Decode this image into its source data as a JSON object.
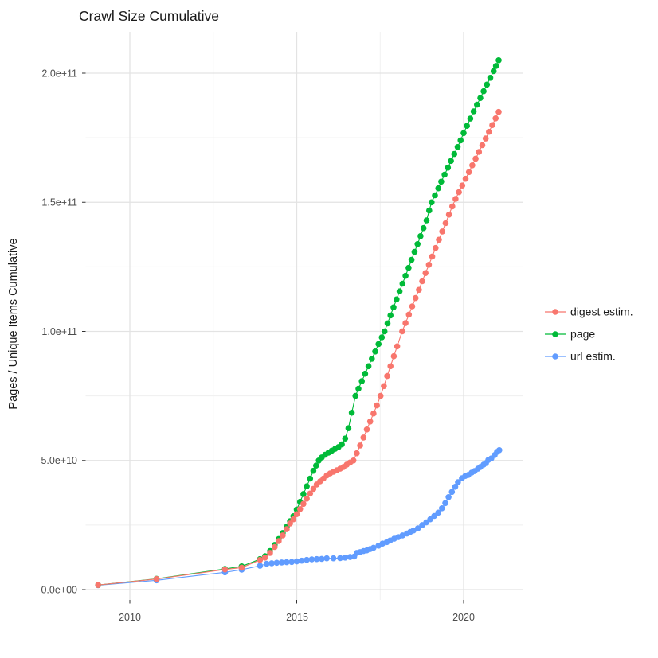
{
  "chart_data": {
    "type": "scatter",
    "title": "Crawl Size Cumulative",
    "xlabel": "",
    "ylabel": "Pages / Unique Items Cumulative",
    "grid": "major+minor",
    "legend_position": "right",
    "x_axis": {
      "ticks": [
        2010,
        2015,
        2020
      ],
      "tick_labels": [
        "2010",
        "2015",
        "2020"
      ],
      "minor_ticks": [
        2012.5,
        2017.5
      ],
      "range": [
        2008.7,
        2021.8
      ]
    },
    "y_axis": {
      "ticks": [
        0,
        50000000000.0,
        100000000000.0,
        150000000000.0,
        200000000000.0
      ],
      "tick_labels": [
        "0.0e+00",
        "5.0e+10",
        "1.0e+11",
        "1.5e+11",
        "2.0e+11"
      ],
      "minor_ticks": [
        25000000000.0,
        75000000000.0,
        125000000000.0,
        175000000000.0
      ],
      "range": [
        -4000000000.0,
        216000000000.0
      ]
    },
    "series": [
      {
        "name": "digest estim.",
        "color": "#F8766D",
        "points": [
          [
            2009.05,
            1800000000.0
          ],
          [
            2010.8,
            4100000000.0
          ],
          [
            2012.85,
            7800000000.0
          ],
          [
            2013.35,
            8500000000.0
          ],
          [
            2013.9,
            11500000000.0
          ],
          [
            2014.05,
            12400000000.0
          ],
          [
            2014.2,
            14200000000.0
          ],
          [
            2014.34,
            16500000000.0
          ],
          [
            2014.46,
            18800000000.0
          ],
          [
            2014.58,
            21000000000.0
          ],
          [
            2014.7,
            23400000000.0
          ],
          [
            2014.8,
            25600000000.0
          ],
          [
            2014.9,
            27200000000.0
          ],
          [
            2015.0,
            29200000000.0
          ],
          [
            2015.1,
            31200000000.0
          ],
          [
            2015.2,
            33200000000.0
          ],
          [
            2015.3,
            35200000000.0
          ],
          [
            2015.4,
            37200000000.0
          ],
          [
            2015.5,
            39000000000.0
          ],
          [
            2015.6,
            40700000000.0
          ],
          [
            2015.7,
            41900000000.0
          ],
          [
            2015.8,
            43000000000.0
          ],
          [
            2015.9,
            44200000000.0
          ],
          [
            2016.0,
            45000000000.0
          ],
          [
            2016.1,
            45600000000.0
          ],
          [
            2016.2,
            46200000000.0
          ],
          [
            2016.3,
            46800000000.0
          ],
          [
            2016.4,
            47500000000.0
          ],
          [
            2016.5,
            48400000000.0
          ],
          [
            2016.6,
            49200000000.0
          ],
          [
            2016.7,
            50000000000.0
          ],
          [
            2016.8,
            52800000000.0
          ],
          [
            2016.9,
            55800000000.0
          ],
          [
            2017.0,
            58900000000.0
          ],
          [
            2017.1,
            62000000000.0
          ],
          [
            2017.2,
            65100000000.0
          ],
          [
            2017.3,
            68200000000.0
          ],
          [
            2017.4,
            71300000000.0
          ],
          [
            2017.51,
            75000000000.0
          ],
          [
            2017.61,
            78800000000.0
          ],
          [
            2017.71,
            82700000000.0
          ],
          [
            2017.81,
            86500000000.0
          ],
          [
            2017.91,
            90400000000.0
          ],
          [
            2018.01,
            94200000000.0
          ],
          [
            2018.16,
            100000000000.0
          ],
          [
            2018.26,
            103200000000.0
          ],
          [
            2018.36,
            106500000000.0
          ],
          [
            2018.46,
            109700000000.0
          ],
          [
            2018.56,
            112900000000.0
          ],
          [
            2018.66,
            116100000000.0
          ],
          [
            2018.76,
            119400000000.0
          ],
          [
            2018.86,
            122600000000.0
          ],
          [
            2018.96,
            125800000000.0
          ],
          [
            2019.06,
            129000000000.0
          ],
          [
            2019.16,
            132300000000.0
          ],
          [
            2019.26,
            135500000000.0
          ],
          [
            2019.36,
            138700000000.0
          ],
          [
            2019.46,
            141900000000.0
          ],
          [
            2019.56,
            145200000000.0
          ],
          [
            2019.66,
            148400000000.0
          ],
          [
            2019.76,
            151300000000.0
          ],
          [
            2019.86,
            153900000000.0
          ],
          [
            2019.96,
            156500000000.0
          ],
          [
            2020.06,
            159100000000.0
          ],
          [
            2020.16,
            161700000000.0
          ],
          [
            2020.26,
            164300000000.0
          ],
          [
            2020.36,
            166900000000.0
          ],
          [
            2020.46,
            169500000000.0
          ],
          [
            2020.56,
            172100000000.0
          ],
          [
            2020.66,
            174700000000.0
          ],
          [
            2020.76,
            177300000000.0
          ],
          [
            2020.86,
            179900000000.0
          ],
          [
            2020.96,
            182500000000.0
          ],
          [
            2021.05,
            185000000000.0
          ]
        ]
      },
      {
        "name": "page",
        "color": "#00BA38",
        "points": [
          [
            2009.05,
            1800000000.0
          ],
          [
            2010.8,
            4200000000.0
          ],
          [
            2012.85,
            8000000000.0
          ],
          [
            2013.35,
            9000000000.0
          ],
          [
            2013.9,
            11800000000.0
          ],
          [
            2014.05,
            12900000000.0
          ],
          [
            2014.2,
            14900000000.0
          ],
          [
            2014.34,
            17300000000.0
          ],
          [
            2014.46,
            19600000000.0
          ],
          [
            2014.58,
            21900000000.0
          ],
          [
            2014.7,
            24300000000.0
          ],
          [
            2014.8,
            26500000000.0
          ],
          [
            2014.9,
            28400000000.0
          ],
          [
            2015.0,
            31000000000.0
          ],
          [
            2015.1,
            34000000000.0
          ],
          [
            2015.2,
            37000000000.0
          ],
          [
            2015.3,
            40000000000.0
          ],
          [
            2015.4,
            43000000000.0
          ],
          [
            2015.5,
            46000000000.0
          ],
          [
            2015.58,
            48000000000.0
          ],
          [
            2015.66,
            50000000000.0
          ],
          [
            2015.75,
            51200000000.0
          ],
          [
            2015.85,
            52200000000.0
          ],
          [
            2015.95,
            53000000000.0
          ],
          [
            2016.05,
            53800000000.0
          ],
          [
            2016.15,
            54500000000.0
          ],
          [
            2016.25,
            55200000000.0
          ],
          [
            2016.35,
            56200000000.0
          ],
          [
            2016.45,
            58500000000.0
          ],
          [
            2016.55,
            62500000000.0
          ],
          [
            2016.65,
            68500000000.0
          ],
          [
            2016.76,
            75000000000.0
          ],
          [
            2016.85,
            77800000000.0
          ],
          [
            2016.95,
            80700000000.0
          ],
          [
            2017.05,
            83600000000.0
          ],
          [
            2017.15,
            86500000000.0
          ],
          [
            2017.25,
            89400000000.0
          ],
          [
            2017.35,
            92200000000.0
          ],
          [
            2017.45,
            95100000000.0
          ],
          [
            2017.55,
            97700000000.0
          ],
          [
            2017.63,
            100000000000.0
          ],
          [
            2017.72,
            103100000000.0
          ],
          [
            2017.81,
            106200000000.0
          ],
          [
            2017.9,
            109300000000.0
          ],
          [
            2017.99,
            112400000000.0
          ],
          [
            2018.08,
            115500000000.0
          ],
          [
            2018.17,
            118500000000.0
          ],
          [
            2018.26,
            121500000000.0
          ],
          [
            2018.35,
            124600000000.0
          ],
          [
            2018.44,
            127700000000.0
          ],
          [
            2018.53,
            130800000000.0
          ],
          [
            2018.62,
            133800000000.0
          ],
          [
            2018.71,
            136900000000.0
          ],
          [
            2018.8,
            140000000000.0
          ],
          [
            2018.89,
            143000000000.0
          ],
          [
            2018.97,
            146800000000.0
          ],
          [
            2019.04,
            150000000000.0
          ],
          [
            2019.14,
            152700000000.0
          ],
          [
            2019.24,
            155400000000.0
          ],
          [
            2019.33,
            158000000000.0
          ],
          [
            2019.43,
            160700000000.0
          ],
          [
            2019.53,
            163400000000.0
          ],
          [
            2019.62,
            166000000000.0
          ],
          [
            2019.72,
            168700000000.0
          ],
          [
            2019.82,
            171400000000.0
          ],
          [
            2019.91,
            174000000000.0
          ],
          [
            2020.0,
            176800000000.0
          ],
          [
            2020.1,
            179600000000.0
          ],
          [
            2020.2,
            182400000000.0
          ],
          [
            2020.3,
            185200000000.0
          ],
          [
            2020.4,
            187800000000.0
          ],
          [
            2020.5,
            190400000000.0
          ],
          [
            2020.6,
            193000000000.0
          ],
          [
            2020.7,
            195600000000.0
          ],
          [
            2020.8,
            198200000000.0
          ],
          [
            2020.9,
            200800000000.0
          ],
          [
            2020.97,
            202800000000.0
          ],
          [
            2021.05,
            205000000000.0
          ]
        ]
      },
      {
        "name": "url estim.",
        "color": "#619CFF",
        "points": [
          [
            2009.05,
            1700000000.0
          ],
          [
            2010.8,
            3600000000.0
          ],
          [
            2012.85,
            6700000000.0
          ],
          [
            2013.35,
            7700000000.0
          ],
          [
            2013.9,
            9200000000.0
          ],
          [
            2014.1,
            10000000000.0
          ],
          [
            2014.25,
            10200000000.0
          ],
          [
            2014.4,
            10400000000.0
          ],
          [
            2014.55,
            10500000000.0
          ],
          [
            2014.7,
            10600000000.0
          ],
          [
            2014.85,
            10700000000.0
          ],
          [
            2015.0,
            10900000000.0
          ],
          [
            2015.15,
            11200000000.0
          ],
          [
            2015.3,
            11500000000.0
          ],
          [
            2015.45,
            11700000000.0
          ],
          [
            2015.6,
            11800000000.0
          ],
          [
            2015.75,
            11900000000.0
          ],
          [
            2015.9,
            12100000000.0
          ],
          [
            2016.1,
            12100000000.0
          ],
          [
            2016.3,
            12200000000.0
          ],
          [
            2016.45,
            12400000000.0
          ],
          [
            2016.6,
            12600000000.0
          ],
          [
            2016.72,
            12800000000.0
          ],
          [
            2016.8,
            14200000000.0
          ],
          [
            2016.9,
            14500000000.0
          ],
          [
            2017.0,
            14900000000.0
          ],
          [
            2017.1,
            15200000000.0
          ],
          [
            2017.2,
            15700000000.0
          ],
          [
            2017.3,
            16200000000.0
          ],
          [
            2017.45,
            17000000000.0
          ],
          [
            2017.57,
            17800000000.0
          ],
          [
            2017.7,
            18400000000.0
          ],
          [
            2017.8,
            19000000000.0
          ],
          [
            2017.92,
            19700000000.0
          ],
          [
            2018.04,
            20300000000.0
          ],
          [
            2018.17,
            21000000000.0
          ],
          [
            2018.3,
            21700000000.0
          ],
          [
            2018.4,
            22300000000.0
          ],
          [
            2018.5,
            22900000000.0
          ],
          [
            2018.63,
            23700000000.0
          ],
          [
            2018.76,
            25000000000.0
          ],
          [
            2018.88,
            26000000000.0
          ],
          [
            2019.0,
            27200000000.0
          ],
          [
            2019.12,
            28500000000.0
          ],
          [
            2019.24,
            29800000000.0
          ],
          [
            2019.35,
            31500000000.0
          ],
          [
            2019.45,
            33500000000.0
          ],
          [
            2019.55,
            35800000000.0
          ],
          [
            2019.65,
            37800000000.0
          ],
          [
            2019.75,
            39800000000.0
          ],
          [
            2019.83,
            41600000000.0
          ],
          [
            2019.95,
            43100000000.0
          ],
          [
            2020.05,
            44000000000.0
          ],
          [
            2020.14,
            44400000000.0
          ],
          [
            2020.24,
            45300000000.0
          ],
          [
            2020.33,
            45900000000.0
          ],
          [
            2020.43,
            46800000000.0
          ],
          [
            2020.5,
            47500000000.0
          ],
          [
            2020.6,
            48400000000.0
          ],
          [
            2020.67,
            49000000000.0
          ],
          [
            2020.74,
            50200000000.0
          ],
          [
            2020.83,
            50800000000.0
          ],
          [
            2020.93,
            52100000000.0
          ],
          [
            2021.0,
            53300000000.0
          ],
          [
            2021.07,
            54000000000.0
          ]
        ]
      }
    ],
    "legend": {
      "items": [
        {
          "label": "digest estim."
        },
        {
          "label": "page"
        },
        {
          "label": "url estim."
        }
      ]
    },
    "style": {
      "major_grid_color": "#E3E3E3",
      "minor_grid_color": "#EFEFEF",
      "tick_mark_color": "#333333",
      "background": "#FFFFFF"
    }
  }
}
